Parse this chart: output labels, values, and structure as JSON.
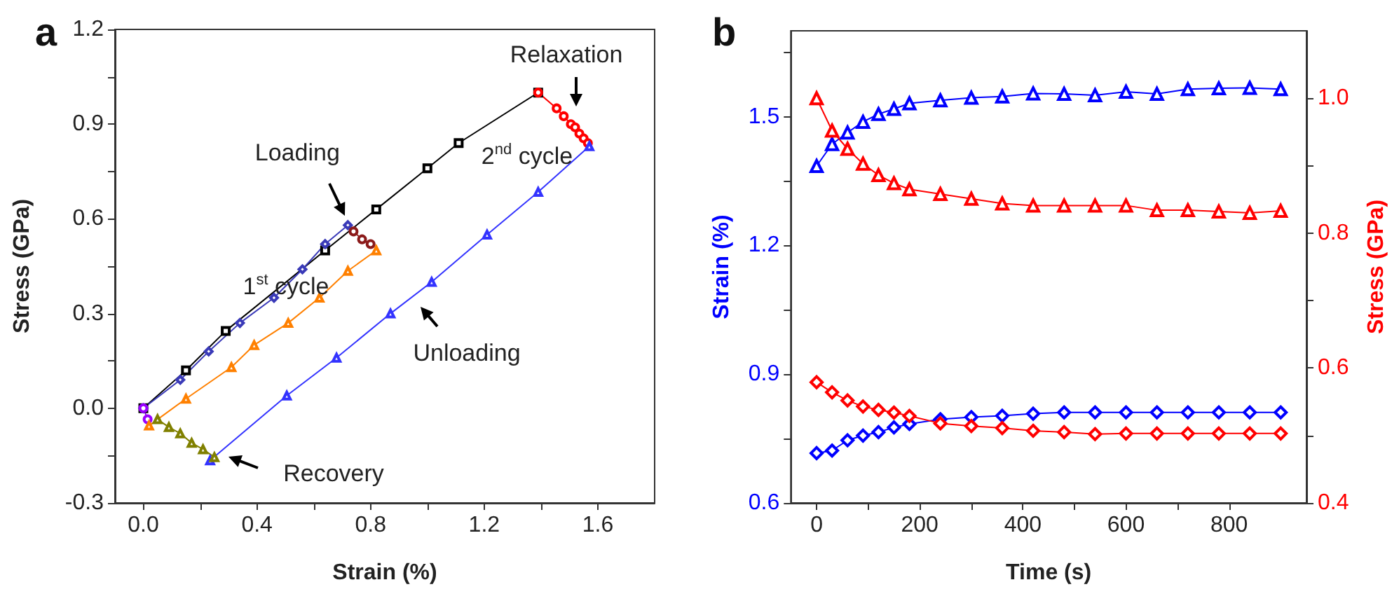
{
  "chart_data": [
    {
      "type": "line",
      "title": "a",
      "xlabel": "Strain (%)",
      "ylabel": "Stress (GPa)",
      "xlim": [
        -0.1,
        1.8
      ],
      "ylim": [
        -0.3,
        1.2
      ],
      "xticks": [
        {
          "value": 0,
          "label": "0.0"
        },
        {
          "value": 0.2,
          "label": null
        },
        0.4,
        {
          "value": 0.6,
          "label": null
        },
        0.8,
        {
          "value": 1.0,
          "label": null
        },
        1.2,
        {
          "value": 1.4,
          "label": null
        },
        1.6
      ],
      "yticks": [
        -0.3,
        {
          "value": -0.15,
          "label": null
        },
        {
          "value": 0,
          "label": "0.0"
        },
        {
          "value": 0.15,
          "label": null
        },
        0.3,
        {
          "value": 0.45,
          "label": null
        },
        0.6,
        {
          "value": 0.75,
          "label": null
        },
        0.9,
        {
          "value": 1.05,
          "label": null
        },
        1.2
      ],
      "grid": false,
      "series": [
        {
          "color": "#000000",
          "marker": "square",
          "x": [
            0,
            0.15,
            0.29,
            0.64,
            0.82,
            1.0,
            1.11,
            1.39
          ],
          "values": [
            0,
            0.12,
            0.245,
            0.5,
            0.63,
            0.76,
            0.84,
            1.0
          ]
        },
        {
          "color": "#3a3ab8",
          "marker": "diamond",
          "x": [
            0,
            0.13,
            0.23,
            0.34,
            0.46,
            0.56,
            0.64,
            0.72
          ],
          "values": [
            0,
            0.09,
            0.18,
            0.27,
            0.35,
            0.44,
            0.52,
            0.58
          ]
        },
        {
          "color": "#8b1a1a",
          "marker": "circle",
          "x": [
            0.74,
            0.77,
            0.8
          ],
          "values": [
            0.56,
            0.535,
            0.52
          ]
        },
        {
          "color": "#9900ff",
          "marker": "circle",
          "x": [
            0.015,
            0
          ],
          "values": [
            -0.035,
            0
          ]
        },
        {
          "color": "#ff8000",
          "marker": "triangle",
          "x": [
            0.82,
            0.72,
            0.62,
            0.51,
            0.39,
            0.31,
            0.15,
            0.02
          ],
          "values": [
            0.5,
            0.435,
            0.35,
            0.27,
            0.2,
            0.13,
            0.03,
            -0.055
          ]
        },
        {
          "color": "#ff0000",
          "marker": "circle",
          "x": [
            1.39,
            1.455,
            1.48,
            1.505,
            1.52,
            1.535,
            1.55,
            1.565
          ],
          "values": [
            1.0,
            0.95,
            0.925,
            0.9,
            0.89,
            0.87,
            0.855,
            0.84
          ]
        },
        {
          "color": "#3333ff",
          "marker": "triangle",
          "x": [
            1.57,
            1.39,
            1.21,
            1.015,
            0.87,
            0.68,
            0.505,
            0.235
          ],
          "values": [
            0.83,
            0.685,
            0.55,
            0.4,
            0.3,
            0.16,
            0.04,
            -0.165
          ]
        },
        {
          "color": "#808000",
          "marker": "triangle",
          "x": [
            0.25,
            0.21,
            0.17,
            0.13,
            0.09,
            0.05
          ],
          "values": [
            -0.155,
            -0.13,
            -0.11,
            -0.08,
            -0.06,
            -0.035
          ]
        }
      ],
      "annotations": [
        {
          "text": "Loading",
          "x": 0.72,
          "y": 0.58
        },
        "Relaxation",
        "Unloading",
        "Recovery",
        "1$^{st}$ cycle",
        "2$^{nd}$ cycle"
      ]
    },
    {
      "type": "line",
      "title": "b",
      "xlabel": "Time (s)",
      "ylabel": "Strain (%)",
      "y2label": "Stress (GPa)",
      "xlim": [
        -50,
        950
      ],
      "ylim": [
        0.6,
        1.7
      ],
      "y2lim": [
        0.4,
        1.1
      ],
      "xticks": [
        0,
        {
          "value": 100,
          "label": null
        },
        200,
        {
          "value": 300,
          "label": null
        },
        400,
        {
          "value": 500,
          "label": null
        },
        600,
        {
          "value": 700,
          "label": null
        },
        800
      ],
      "yticks": [
        0.6,
        {
          "value": 0.75,
          "label": null
        },
        0.9,
        {
          "value": 1.05,
          "label": null
        },
        1.2,
        {
          "value": 1.35,
          "label": null
        },
        1.5,
        {
          "value": 1.65,
          "label": null
        }
      ],
      "y2ticks": [
        0.4,
        {
          "value": 0.5,
          "label": null
        },
        0.6,
        {
          "value": 0.7,
          "label": null
        },
        0.8,
        {
          "value": 0.9,
          "label": null
        },
        {
          "value": 1.0,
          "label": "1.0"
        }
      ],
      "grid": false,
      "x": [
        0,
        30,
        60,
        90,
        120,
        150,
        180,
        240,
        300,
        360,
        420,
        480,
        540,
        600,
        660,
        720,
        780,
        840,
        900
      ],
      "series": [
        {
          "color": "#0000ff",
          "marker": "triangle",
          "values": [
            1.385,
            1.436,
            1.463,
            1.488,
            1.506,
            1.518,
            1.531,
            1.538,
            1.544,
            1.547,
            1.554,
            1.553,
            1.55,
            1.558,
            1.553,
            1.564,
            1.566,
            1.567,
            1.564
          ]
        },
        {
          "color": "#ff0000",
          "marker": "triangle",
          "axis": "y2",
          "values": [
            1.0,
            0.952,
            0.925,
            0.903,
            0.886,
            0.874,
            0.865,
            0.858,
            0.851,
            0.844,
            0.841,
            0.841,
            0.841,
            0.841,
            0.834,
            0.834,
            0.832,
            0.83,
            0.833
          ]
        },
        {
          "color": "#0000ff",
          "marker": "diamond",
          "values": [
            0.716,
            0.722,
            0.746,
            0.757,
            0.765,
            0.776,
            0.784,
            0.795,
            0.8,
            0.803,
            0.808,
            0.811,
            0.811,
            0.811,
            0.811,
            0.811,
            0.811,
            0.811,
            0.811
          ]
        },
        {
          "color": "#ff0000",
          "marker": "diamond",
          "axis": "y2",
          "values": [
            0.579,
            0.564,
            0.552,
            0.543,
            0.538,
            0.534,
            0.529,
            0.518,
            0.514,
            0.511,
            0.507,
            0.505,
            0.502,
            0.503,
            0.503,
            0.503,
            0.503,
            0.503,
            0.503
          ]
        }
      ]
    }
  ]
}
